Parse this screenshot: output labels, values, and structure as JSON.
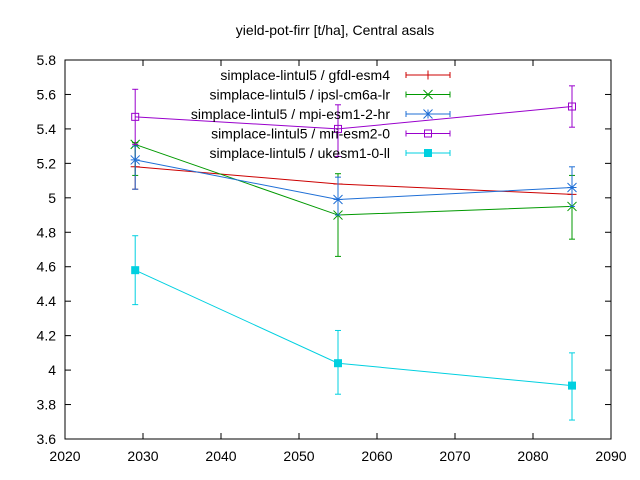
{
  "chart_data": {
    "type": "line",
    "title": "yield-pot-firr [t/ha], Central asals",
    "xlabel": "",
    "ylabel": "",
    "xlim": [
      2020,
      2090
    ],
    "ylim": [
      3.6,
      5.8
    ],
    "xticks": [
      2020,
      2030,
      2040,
      2050,
      2060,
      2070,
      2080,
      2090
    ],
    "yticks": [
      3.6,
      3.8,
      4,
      4.2,
      4.4,
      4.6,
      4.8,
      5,
      5.2,
      5.4,
      5.6,
      5.8
    ],
    "grid": false,
    "legend_position": "top-right",
    "x": [
      2029,
      2055,
      2085
    ],
    "series": [
      {
        "name": "simplace-lintul5 / gfdl-esm4",
        "color": "#cc0000",
        "marker": "plus",
        "values": [
          5.18,
          5.08,
          5.02
        ],
        "err_low": [
          5.05,
          null,
          null
        ],
        "err_high": [
          5.32,
          null,
          null
        ]
      },
      {
        "name": "simplace-lintul5 / ipsl-cm6a-lr",
        "color": "#009900",
        "marker": "cross",
        "values": [
          5.31,
          4.9,
          4.95
        ],
        "err_low": [
          5.13,
          4.66,
          4.76
        ],
        "err_high": [
          5.32,
          5.14,
          5.13
        ]
      },
      {
        "name": "simplace-lintul5 / mpi-esm1-2-hr",
        "color": "#1f6fd6",
        "marker": "star",
        "values": [
          5.22,
          4.99,
          5.06
        ],
        "err_low": [
          5.05,
          4.9,
          4.95
        ],
        "err_high": [
          5.3,
          5.12,
          5.18
        ]
      },
      {
        "name": "simplace-lintul5 / mri-esm2-0",
        "color": "#9900cc",
        "marker": "open-square",
        "values": [
          5.47,
          5.4,
          5.53
        ],
        "err_low": [
          5.31,
          5.24,
          5.41
        ],
        "err_high": [
          5.63,
          5.54,
          5.65
        ]
      },
      {
        "name": "simplace-lintul5 / ukesm1-0-ll",
        "color": "#00d0e0",
        "marker": "filled-square",
        "values": [
          4.58,
          4.04,
          3.91
        ],
        "err_low": [
          4.38,
          3.86,
          3.71
        ],
        "err_high": [
          4.78,
          4.23,
          4.1
        ]
      }
    ]
  }
}
